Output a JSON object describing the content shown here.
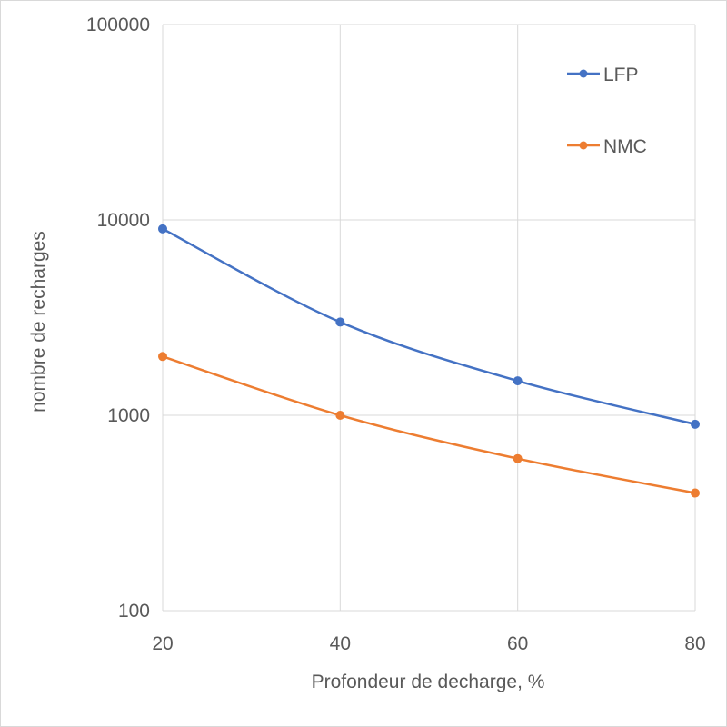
{
  "chart_data": {
    "type": "line",
    "title": "",
    "xlabel": "Profondeur de decharge, %",
    "ylabel": "nombre de recharges",
    "x": [
      20,
      40,
      60,
      80
    ],
    "x_ticks": [
      "20",
      "40",
      "60",
      "80"
    ],
    "xlim": [
      20,
      80
    ],
    "y_scale": "log",
    "ylim": [
      100,
      100000
    ],
    "y_ticks": [
      "100",
      "1000",
      "10000",
      "100000"
    ],
    "grid": true,
    "legend_position": "top-right",
    "series": [
      {
        "name": "LFP",
        "values": [
          9000,
          3000,
          1500,
          900
        ],
        "color": "#4472C4"
      },
      {
        "name": "NMC",
        "values": [
          2000,
          1000,
          600,
          400
        ],
        "color": "#ED7D31"
      }
    ]
  }
}
